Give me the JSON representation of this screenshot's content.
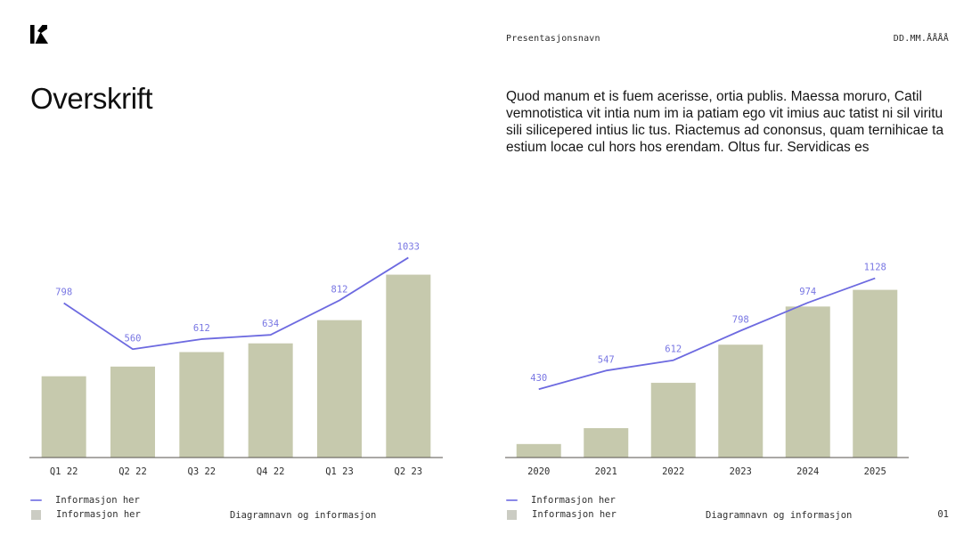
{
  "header": {
    "logo_icon": "brand-mark-icon",
    "presentation_name": "Presentasjonsnavn",
    "date": "DD.MM.ÅÅÅÅ"
  },
  "title": "Overskrift",
  "body_text": "Quod manum et is fuem acerisse, ortia publis. Maessa moruro, Catil vemnotistica vit intia num im ia patiam ego vit imius auc tatist ni sil viritu sili silicepered intius lic tus. Riactemus ad cononsus, quam ternihicae ta estium locae cul hors hos erendam. Oltus fur. Servidicas es",
  "page_number": "01",
  "colors": {
    "line": "#6d6ae0",
    "value_label": "#7876e3",
    "bar": "#c6c9ad",
    "legend_line_swatch": "#8a88e8",
    "legend_bar_swatch": "#cbccc3",
    "axis": "#55524e",
    "tick_label": "#2e2e2e"
  },
  "chart_data": [
    {
      "type": "bar",
      "subtype": "bar-with-line-overlay",
      "categories": [
        "Q1 22",
        "Q2 22",
        "Q3 22",
        "Q4 22",
        "Q1 23",
        "Q2 23"
      ],
      "series": [
        {
          "name": "Informasjon her",
          "type": "line",
          "value_labels_shown": true,
          "values": [
            798,
            560,
            612,
            634,
            812,
            1033
          ]
        },
        {
          "name": "Informasjon her",
          "type": "bar",
          "value_labels_shown": false,
          "values": [
            420,
            470,
            545,
            590,
            710,
            945
          ]
        }
      ],
      "ylim": [
        0,
        1150
      ],
      "grid": false,
      "legend_position": "bottom-left",
      "caption": "Diagramnavn og informasjon"
    },
    {
      "type": "bar",
      "subtype": "bar-with-line-overlay",
      "categories": [
        "2020",
        "2021",
        "2022",
        "2023",
        "2024",
        "2025"
      ],
      "series": [
        {
          "name": "Informasjon her",
          "type": "line",
          "value_labels_shown": true,
          "values": [
            430,
            547,
            612,
            798,
            974,
            1128
          ]
        },
        {
          "name": "Informasjon her",
          "type": "bar",
          "value_labels_shown": false,
          "values": [
            85,
            185,
            470,
            710,
            950,
            1055
          ]
        }
      ],
      "ylim": [
        0,
        1400
      ],
      "grid": false,
      "legend_position": "bottom-left",
      "caption": "Diagramnavn og informasjon"
    }
  ]
}
